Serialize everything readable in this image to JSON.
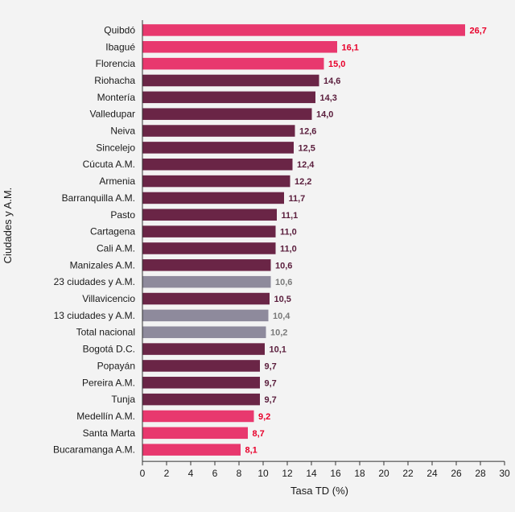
{
  "chart_data": {
    "type": "bar",
    "orientation": "horizontal",
    "title": "",
    "xlabel": "Tasa TD (%)",
    "ylabel": "Ciudades y A.M.",
    "xlim": [
      0,
      30
    ],
    "xticks": [
      0,
      2,
      4,
      6,
      8,
      10,
      12,
      14,
      16,
      18,
      20,
      22,
      24,
      26,
      28,
      30
    ],
    "grid": false,
    "legend": "none",
    "colors": {
      "high": "#e8386e",
      "standard": "#6a2546",
      "aggregate": "#8e8a9c",
      "high_label": "#e8002b",
      "standard_label": "#5a1d3c",
      "aggregate_label": "#7a7a7a"
    },
    "bars": [
      {
        "category": "Quibdó",
        "value": 26.7,
        "label": "26,7",
        "group": "high"
      },
      {
        "category": "Ibagué",
        "value": 16.1,
        "label": "16,1",
        "group": "high"
      },
      {
        "category": "Florencia",
        "value": 15.0,
        "label": "15,0",
        "group": "high"
      },
      {
        "category": "Riohacha",
        "value": 14.6,
        "label": "14,6",
        "group": "standard"
      },
      {
        "category": "Montería",
        "value": 14.3,
        "label": "14,3",
        "group": "standard"
      },
      {
        "category": "Valledupar",
        "value": 14.0,
        "label": "14,0",
        "group": "standard"
      },
      {
        "category": "Neiva",
        "value": 12.6,
        "label": "12,6",
        "group": "standard"
      },
      {
        "category": "Sincelejo",
        "value": 12.5,
        "label": "12,5",
        "group": "standard"
      },
      {
        "category": "Cúcuta A.M.",
        "value": 12.4,
        "label": "12,4",
        "group": "standard"
      },
      {
        "category": "Armenia",
        "value": 12.2,
        "label": "12,2",
        "group": "standard"
      },
      {
        "category": "Barranquilla A.M.",
        "value": 11.7,
        "label": "11,7",
        "group": "standard"
      },
      {
        "category": "Pasto",
        "value": 11.1,
        "label": "11,1",
        "group": "standard"
      },
      {
        "category": "Cartagena",
        "value": 11.0,
        "label": "11,0",
        "group": "standard"
      },
      {
        "category": "Cali A.M.",
        "value": 11.0,
        "label": "11,0",
        "group": "standard"
      },
      {
        "category": "Manizales A.M.",
        "value": 10.6,
        "label": "10,6",
        "group": "standard"
      },
      {
        "category": "23 ciudades y A.M.",
        "value": 10.6,
        "label": "10,6",
        "group": "aggregate"
      },
      {
        "category": "Villavicencio",
        "value": 10.5,
        "label": "10,5",
        "group": "standard"
      },
      {
        "category": "13 ciudades y A.M.",
        "value": 10.4,
        "label": "10,4",
        "group": "aggregate"
      },
      {
        "category": "Total nacional",
        "value": 10.2,
        "label": "10,2",
        "group": "aggregate"
      },
      {
        "category": "Bogotá D.C.",
        "value": 10.1,
        "label": "10,1",
        "group": "standard"
      },
      {
        "category": "Popayán",
        "value": 9.7,
        "label": "9,7",
        "group": "standard"
      },
      {
        "category": "Pereira A.M.",
        "value": 9.7,
        "label": "9,7",
        "group": "standard"
      },
      {
        "category": "Tunja",
        "value": 9.7,
        "label": "9,7",
        "group": "standard"
      },
      {
        "category": "Medellín A.M.",
        "value": 9.2,
        "label": "9,2",
        "group": "high"
      },
      {
        "category": "Santa Marta",
        "value": 8.7,
        "label": "8,7",
        "group": "high"
      },
      {
        "category": "Bucaramanga A.M.",
        "value": 8.1,
        "label": "8,1",
        "group": "high"
      }
    ]
  }
}
